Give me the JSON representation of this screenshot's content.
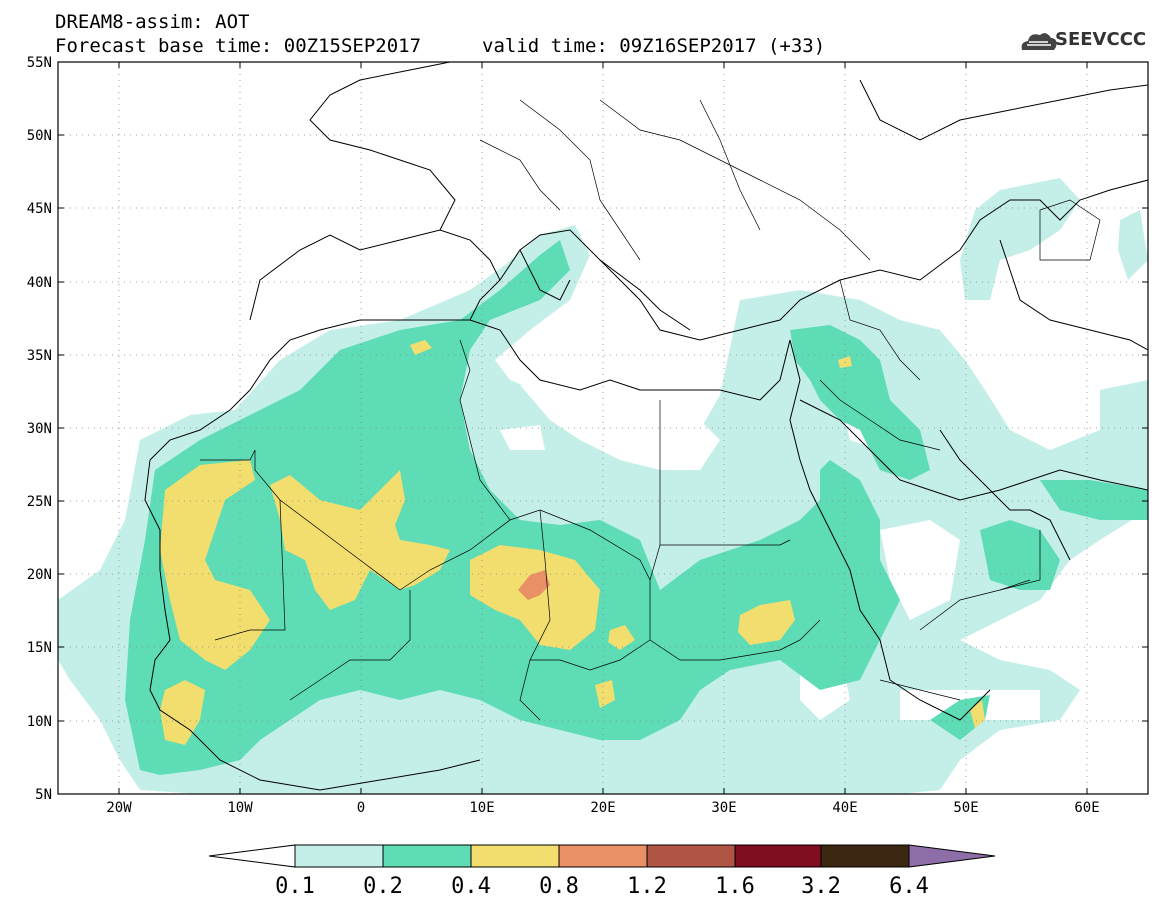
{
  "header": {
    "line1": "DREAM8-assim: AOT",
    "line2": "Forecast base time: 00Z15SEP2017",
    "line3": "valid time: 09Z16SEP2017 (+33)",
    "logo_text": "SEEVCCC"
  },
  "axes": {
    "lat_labels": [
      "55N",
      "50N",
      "45N",
      "40N",
      "35N",
      "30N",
      "25N",
      "20N",
      "15N",
      "10N",
      "5N"
    ],
    "lon_labels": [
      "20W",
      "10W",
      "0",
      "10E",
      "20E",
      "30E",
      "40E",
      "50E",
      "60E"
    ],
    "lat_range": [
      5,
      55
    ],
    "lon_range": [
      -25,
      65
    ],
    "grid": true
  },
  "colorbar": {
    "ticks": [
      "0.1",
      "0.2",
      "0.4",
      "0.8",
      "1.2",
      "1.6",
      "3.2",
      "6.4"
    ],
    "colors": [
      "#c4efe8",
      "#5ddcb6",
      "#f2de6e",
      "#e99066",
      "#b05444",
      "#7e0d22",
      "#3b2612"
    ],
    "under_color": "#ffffff",
    "over_color": "#8e6ea8"
  },
  "legend_colors": {
    "c1": "#c4efe8",
    "c2": "#5ddcb6",
    "c3": "#f2de6e",
    "c4": "#e99066"
  }
}
